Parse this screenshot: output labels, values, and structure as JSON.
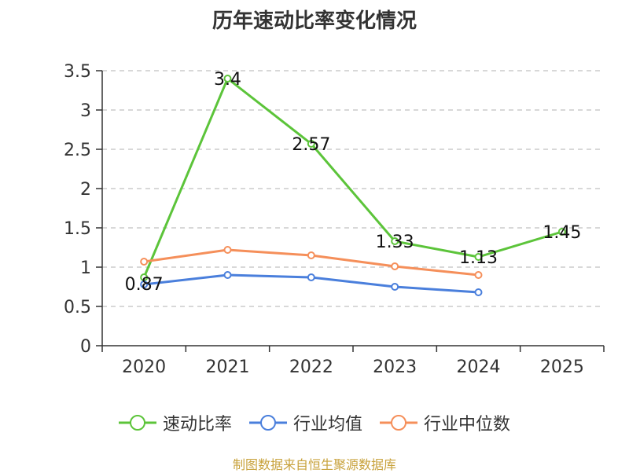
{
  "chart_data": {
    "type": "line",
    "title": "历年速动比率变化情况",
    "categories": [
      "2020",
      "2021",
      "2022",
      "2023",
      "2024",
      "2025"
    ],
    "ylim": [
      0,
      3.5
    ],
    "yticks": [
      "0",
      "0.5",
      "1",
      "1.5",
      "2",
      "2.5",
      "3",
      "3.5"
    ],
    "grid": true,
    "legend_position": "bottom",
    "series": [
      {
        "name": "速动比率",
        "color": "#5cc43a",
        "values": [
          0.87,
          3.4,
          2.57,
          1.33,
          1.13,
          1.45
        ],
        "labels": [
          "0.87",
          "3.4",
          "2.57",
          "1.33",
          "1.13",
          "1.45"
        ]
      },
      {
        "name": "行业均值",
        "color": "#4a7fdc",
        "values": [
          0.78,
          0.9,
          0.87,
          0.75,
          0.68,
          null
        ]
      },
      {
        "name": "行业中位数",
        "color": "#f58f5a",
        "values": [
          1.07,
          1.22,
          1.15,
          1.01,
          0.9,
          null
        ]
      }
    ]
  },
  "source_note": "制图数据来自恒生聚源数据库"
}
